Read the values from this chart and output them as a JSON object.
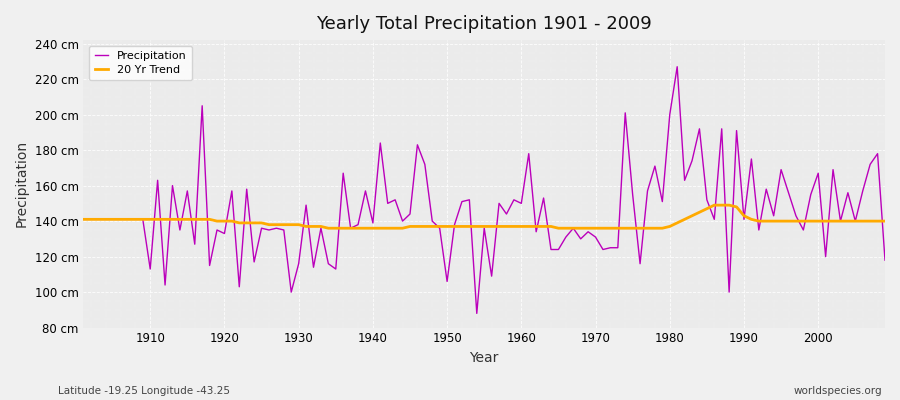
{
  "title": "Yearly Total Precipitation 1901 - 2009",
  "xlabel": "Year",
  "ylabel": "Precipitation",
  "subtitle": "Latitude -19.25 Longitude -43.25",
  "watermark": "worldspecies.org",
  "bg_color": "#f0f0f0",
  "plot_bg_color": "#ebebeb",
  "precip_color": "#bb00bb",
  "trend_color": "#ffaa00",
  "ylim": [
    80,
    242
  ],
  "yticks": [
    80,
    100,
    120,
    140,
    160,
    180,
    200,
    220,
    240
  ],
  "xlim": [
    1901,
    2009
  ],
  "years": [
    1901,
    1902,
    1903,
    1904,
    1905,
    1906,
    1907,
    1908,
    1909,
    1910,
    1911,
    1912,
    1913,
    1914,
    1915,
    1916,
    1917,
    1918,
    1919,
    1920,
    1921,
    1922,
    1923,
    1924,
    1925,
    1926,
    1927,
    1928,
    1929,
    1930,
    1931,
    1932,
    1933,
    1934,
    1935,
    1936,
    1937,
    1938,
    1939,
    1940,
    1941,
    1942,
    1943,
    1944,
    1945,
    1946,
    1947,
    1948,
    1949,
    1950,
    1951,
    1952,
    1953,
    1954,
    1955,
    1956,
    1957,
    1958,
    1959,
    1960,
    1961,
    1962,
    1963,
    1964,
    1965,
    1966,
    1967,
    1968,
    1969,
    1970,
    1971,
    1972,
    1973,
    1974,
    1975,
    1976,
    1977,
    1978,
    1979,
    1980,
    1981,
    1982,
    1983,
    1984,
    1985,
    1986,
    1987,
    1988,
    1989,
    1990,
    1991,
    1992,
    1993,
    1994,
    1995,
    1996,
    1997,
    1998,
    1999,
    2000,
    2001,
    2002,
    2003,
    2004,
    2005,
    2006,
    2007,
    2008,
    2009
  ],
  "precip": [
    141,
    141,
    141,
    141,
    141,
    141,
    141,
    141,
    141,
    113,
    163,
    104,
    160,
    135,
    157,
    127,
    205,
    115,
    135,
    133,
    157,
    103,
    158,
    117,
    136,
    135,
    136,
    135,
    100,
    116,
    149,
    114,
    136,
    116,
    113,
    167,
    136,
    138,
    157,
    139,
    184,
    150,
    152,
    140,
    144,
    183,
    172,
    140,
    136,
    106,
    138,
    151,
    152,
    88,
    136,
    109,
    150,
    144,
    152,
    150,
    178,
    134,
    153,
    124,
    124,
    131,
    136,
    130,
    134,
    131,
    124,
    125,
    125,
    201,
    155,
    116,
    157,
    171,
    151,
    200,
    227,
    163,
    174,
    192,
    152,
    141,
    192,
    100,
    191,
    141,
    175,
    135,
    158,
    143,
    169,
    156,
    143,
    135,
    155,
    167,
    120,
    169,
    140,
    156,
    140,
    157,
    172,
    178,
    118
  ],
  "trend": [
    141,
    141,
    141,
    141,
    141,
    141,
    141,
    141,
    141,
    141,
    141,
    141,
    141,
    141,
    141,
    141,
    141,
    141,
    140,
    140,
    140,
    139,
    139,
    139,
    139,
    138,
    138,
    138,
    138,
    138,
    137,
    137,
    137,
    136,
    136,
    136,
    136,
    136,
    136,
    136,
    136,
    136,
    136,
    136,
    137,
    137,
    137,
    137,
    137,
    137,
    137,
    137,
    137,
    137,
    137,
    137,
    137,
    137,
    137,
    137,
    137,
    137,
    137,
    137,
    136,
    136,
    136,
    136,
    136,
    136,
    136,
    136,
    136,
    136,
    136,
    136,
    136,
    136,
    136,
    137,
    139,
    141,
    143,
    145,
    147,
    149,
    149,
    149,
    148,
    143,
    141,
    140,
    140,
    140,
    140,
    140,
    140,
    140,
    140,
    140,
    140,
    140,
    140,
    140,
    140,
    140,
    140,
    140,
    140
  ]
}
